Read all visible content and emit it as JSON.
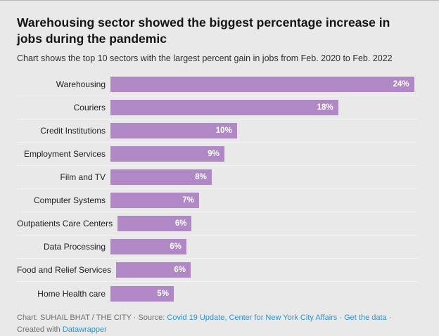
{
  "header": {
    "title": "Warehousing sector showed the biggest percentage increase in jobs during the pandemic",
    "subtitle": "Chart shows the top 10 sectors with the largest percent gain in jobs from Feb. 2020 to Feb. 2022"
  },
  "chart_data": {
    "type": "bar",
    "orientation": "horizontal",
    "categories": [
      "Warehousing",
      "Couriers",
      "Credit Institutions",
      "Employment Services",
      "Film and TV",
      "Computer Systems",
      "Outpatients Care Centers",
      "Data Processing",
      "Food and Relief Services",
      "Home Health care"
    ],
    "values": [
      24,
      18,
      10,
      9,
      8,
      7,
      6,
      6,
      6,
      5
    ],
    "value_labels": [
      "24%",
      "18%",
      "10%",
      "9%",
      "8%",
      "7%",
      "6%",
      "6%",
      "6%",
      "5%"
    ],
    "title": "Warehousing sector showed the biggest percentage increase in jobs during the pandemic",
    "xlabel": "",
    "ylabel": "",
    "xlim": [
      0,
      24.3
    ],
    "grid": "dotted-row-separators",
    "legend": "none",
    "bar_color": "#b088c6",
    "value_label_color": "#ffffff",
    "background_color": "#e9e9e9"
  },
  "footer": {
    "byline": "Chart: SUHAIL BHAT / THE CITY",
    "dot": "·",
    "source_label": "Source:",
    "source_link": "Covid 19 Update, Center for New York City Affairs",
    "get_data_link": "Get the data",
    "created_with": "Created with",
    "datawrapper_link": "Datawrapper"
  }
}
